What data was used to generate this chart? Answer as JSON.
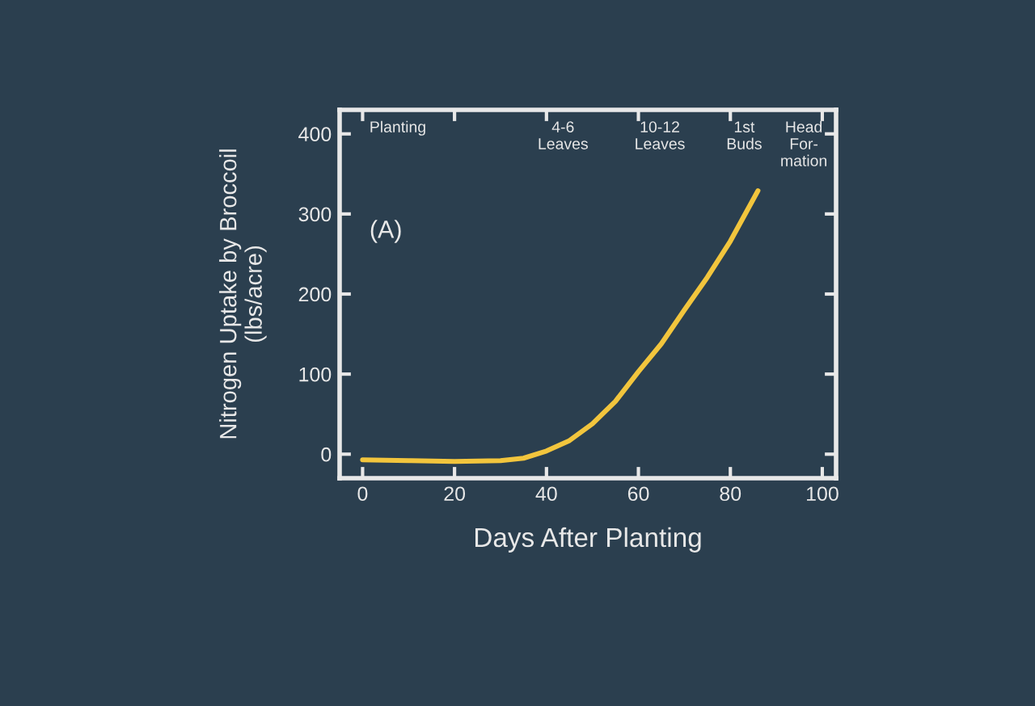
{
  "chart_data": {
    "type": "line",
    "xlabel": "Days After Planting",
    "ylabel": "Nitrogen Uptake by Broccoil\n(lbs/acre)",
    "x": [
      0,
      10,
      20,
      30,
      35,
      40,
      45,
      50,
      55,
      60,
      65,
      70,
      75,
      80,
      86
    ],
    "series": [
      {
        "color": "#f2c53d",
        "values": [
          -7,
          -8,
          -9,
          -8,
          -5,
          4,
          17,
          38,
          66,
          103,
          138,
          180,
          221,
          266,
          329
        ]
      }
    ],
    "xlim": [
      -5,
      103
    ],
    "ylim": [
      -30,
      430
    ],
    "xticks": [
      0,
      20,
      40,
      60,
      80,
      100
    ],
    "yticks": [
      0,
      100,
      200,
      300,
      400
    ],
    "annotations": [
      "Planting",
      "4-6\nLeaves",
      "10-12\nLeaves",
      "1st\nBuds",
      "Head\nFor-\nmation",
      "(A)"
    ],
    "grid": false,
    "marker": "none",
    "line_style": "solid",
    "legend": false
  }
}
